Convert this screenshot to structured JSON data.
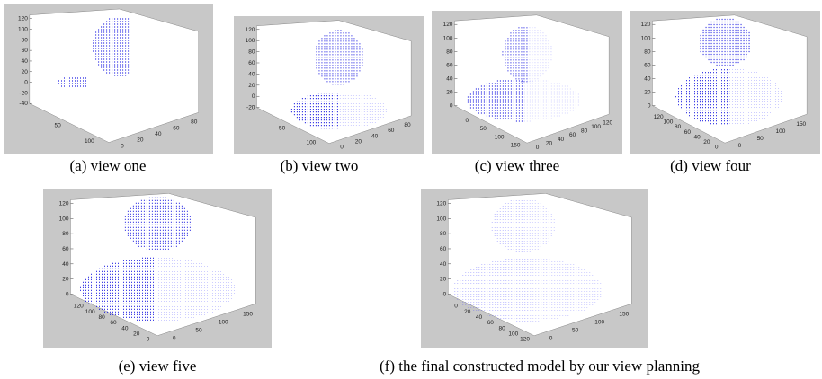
{
  "panels": [
    {
      "caption": "(a) view one",
      "z_ticks": [
        "120",
        "100",
        "80",
        "60",
        "40",
        "20",
        "0",
        "-20",
        "-40"
      ],
      "x_ticks": [
        "50",
        "100"
      ],
      "y_ticks": [
        "0",
        "20",
        "40",
        "60",
        "80"
      ]
    },
    {
      "caption": "(b) view two",
      "z_ticks": [
        "120",
        "100",
        "80",
        "60",
        "40",
        "20",
        "0",
        "-20"
      ],
      "x_ticks": [
        "50",
        "100"
      ],
      "y_ticks": [
        "0",
        "20",
        "40",
        "60",
        "80"
      ]
    },
    {
      "caption": "(c) view three",
      "z_ticks": [
        "120",
        "100",
        "80",
        "60",
        "40",
        "20",
        "0"
      ],
      "x_ticks": [
        "0",
        "50",
        "100",
        "150"
      ],
      "y_ticks": [
        "0",
        "20",
        "40",
        "60",
        "80",
        "100",
        "120"
      ]
    },
    {
      "caption": "(d) view four",
      "z_ticks": [
        "120",
        "100",
        "80",
        "60",
        "40",
        "20",
        "0"
      ],
      "x_ticks": [
        "120",
        "100",
        "80",
        "60",
        "40",
        "20",
        "0"
      ],
      "y_ticks": [
        "0",
        "50",
        "100",
        "150"
      ]
    },
    {
      "caption": "(e) view five",
      "z_ticks": [
        "120",
        "100",
        "80",
        "60",
        "40",
        "20",
        "0"
      ],
      "x_ticks": [
        "120",
        "100",
        "80",
        "60",
        "40",
        "20",
        "0"
      ],
      "y_ticks": [
        "0",
        "50",
        "100",
        "150"
      ]
    },
    {
      "caption": "(f) the final constructed model by our view planning",
      "z_ticks": [
        "120",
        "100",
        "80",
        "60",
        "40",
        "20",
        "0"
      ],
      "x_ticks": [
        "0",
        "20",
        "40",
        "60",
        "80",
        "100",
        "120"
      ],
      "y_ticks": [
        "0",
        "50",
        "100",
        "150"
      ]
    }
  ]
}
